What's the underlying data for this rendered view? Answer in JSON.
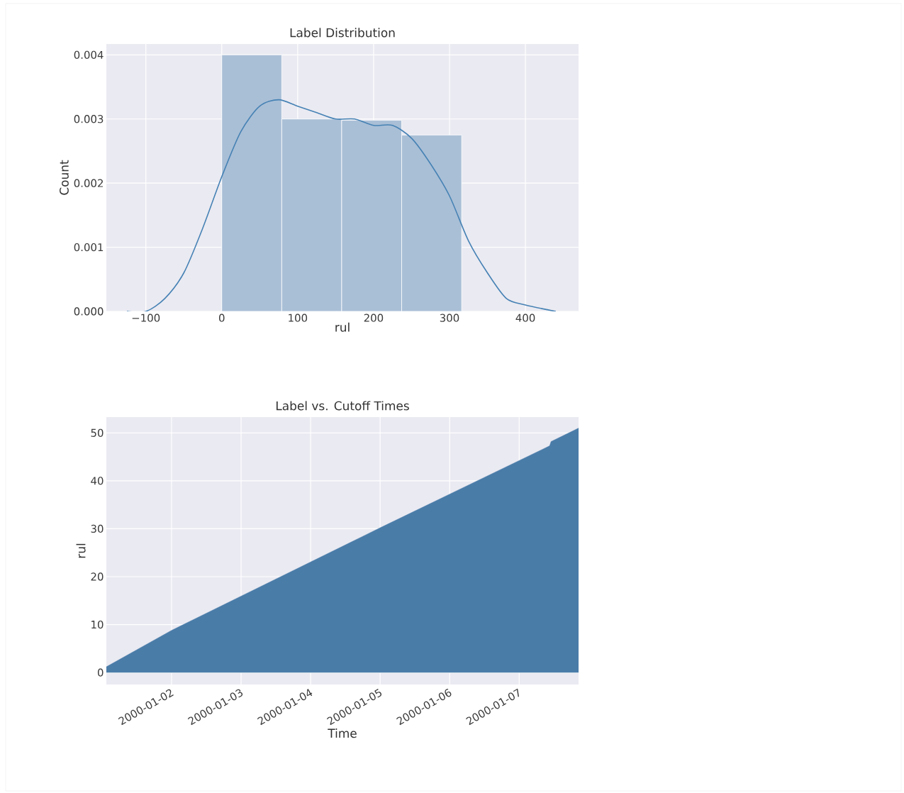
{
  "chart_data": [
    {
      "type": "histogram",
      "title": "Label Distribution",
      "xlabel": "rul",
      "ylabel": "Count",
      "bins": [
        0,
        79,
        158,
        237,
        316
      ],
      "values": [
        0.004,
        0.003,
        0.00298,
        0.00275
      ],
      "color": "#a9bfd6",
      "series": [
        {
          "type": "line",
          "color": "#4682b4",
          "x": [
            -125,
            -100,
            -75,
            -50,
            -25,
            0,
            25,
            50,
            75,
            100,
            125,
            150,
            175,
            200,
            225,
            250,
            275,
            300,
            325,
            350,
            375,
            400,
            440
          ],
          "values": [
            0,
            0,
            0.0002,
            0.0006,
            0.0013,
            0.0021,
            0.0028,
            0.0032,
            0.0033,
            0.0032,
            0.0031,
            0.003,
            0.003,
            0.0029,
            0.0029,
            0.0027,
            0.0023,
            0.0018,
            0.0011,
            0.0006,
            0.0002,
            0.0001,
            0
          ]
        }
      ],
      "xlim": [
        -152,
        470
      ],
      "ylim": [
        0,
        0.00417
      ],
      "xticks": [
        {
          "value": -100,
          "label": "−100"
        },
        0,
        100,
        200,
        300,
        400
      ],
      "yticks": [
        {
          "value": 0,
          "label": "0.000"
        },
        {
          "value": 0.001,
          "label": "0.001"
        },
        {
          "value": 0.002,
          "label": "0.002"
        },
        {
          "value": 0.003,
          "label": "0.003"
        },
        {
          "value": 0.004,
          "label": "0.004"
        }
      ],
      "grid": true
    },
    {
      "type": "area",
      "title": "Label vs. Cutoff Times",
      "xlabel": "Time",
      "ylabel": "rul",
      "color": "#4a7ca8",
      "x": [
        "2000-01-01T01:30",
        "2000-01-02",
        "2000-01-05",
        "2000-01-07T10:30",
        "2000-01-07T11:00",
        "2000-01-07T20:30"
      ],
      "values": [
        1.2,
        8.8,
        30.2,
        47.3,
        48.2,
        51
      ],
      "xlim": [
        "2000-01-01T01:30",
        "2000-01-07T20:30"
      ],
      "ylim": [
        -2.5,
        53.3
      ],
      "xticks": [
        "2000-01-02",
        "2000-01-03",
        "2000-01-04",
        "2000-01-05",
        "2000-01-06",
        "2000-01-07"
      ],
      "yticks": [
        0,
        10,
        20,
        30,
        40,
        50
      ],
      "grid": true
    }
  ]
}
